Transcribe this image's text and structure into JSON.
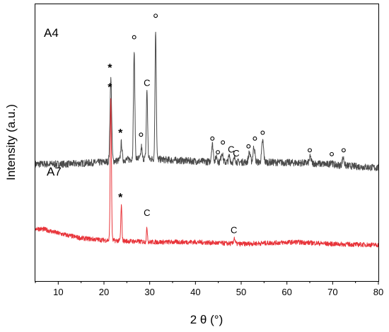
{
  "chart_data": {
    "type": "line",
    "xlabel": "2 θ (°)",
    "ylabel": "Intensity (a.u.)",
    "xlim": [
      5,
      80
    ],
    "x_ticks": [
      "10",
      "20",
      "30",
      "40",
      "50",
      "60",
      "70",
      "80"
    ],
    "y_ticks": [],
    "grid": false,
    "legend": "none",
    "series": [
      {
        "name": "A4",
        "color": "#4a4a4a",
        "baseline": 0.58,
        "noise": 0.018,
        "hump": [
          [
            5,
            0.6
          ],
          [
            12,
            0.6
          ],
          [
            20,
            0.61
          ],
          [
            28,
            0.63
          ],
          [
            35,
            0.62
          ],
          [
            45,
            0.61
          ],
          [
            55,
            0.61
          ],
          [
            65,
            0.605
          ],
          [
            80,
            0.58
          ]
        ],
        "peaks": [
          [
            21.5,
            0.42,
            0.18
          ],
          [
            23.8,
            0.09,
            0.15
          ],
          [
            26.6,
            0.55,
            0.15
          ],
          [
            28.2,
            0.06,
            0.12
          ],
          [
            29.4,
            0.35,
            0.14
          ],
          [
            31.3,
            0.66,
            0.14
          ],
          [
            43.7,
            0.09,
            0.2
          ],
          [
            44.6,
            0.03,
            0.18
          ],
          [
            45.8,
            0.05,
            0.2
          ],
          [
            47.4,
            0.03,
            0.18
          ],
          [
            48.6,
            0.02,
            0.18
          ],
          [
            51.8,
            0.05,
            0.2
          ],
          [
            52.8,
            0.08,
            0.2
          ],
          [
            54.7,
            0.11,
            0.2
          ],
          [
            65.1,
            0.03,
            0.2
          ],
          [
            69.7,
            0.02,
            0.2
          ],
          [
            72.3,
            0.04,
            0.2
          ]
        ]
      },
      {
        "name": "A7",
        "color": "#e8343a",
        "baseline": 0.18,
        "noise": 0.012,
        "hump": [
          [
            5,
            0.27
          ],
          [
            7,
            0.265
          ],
          [
            10,
            0.245
          ],
          [
            15,
            0.22
          ],
          [
            20,
            0.21
          ],
          [
            30,
            0.2
          ],
          [
            40,
            0.2
          ],
          [
            50,
            0.19
          ],
          [
            62,
            0.2
          ],
          [
            70,
            0.19
          ],
          [
            80,
            0.185
          ]
        ],
        "peaks": [
          [
            21.5,
            0.73,
            0.13
          ],
          [
            23.8,
            0.18,
            0.12
          ],
          [
            29.4,
            0.07,
            0.12
          ],
          [
            48.5,
            0.03,
            0.15
          ]
        ]
      }
    ],
    "annotations": [
      {
        "text": "*",
        "x": 21.3,
        "y": 1.09
      },
      {
        "text": "*",
        "x": 23.6,
        "y": 0.755
      },
      {
        "text": "o",
        "x": 26.6,
        "y": 1.24
      },
      {
        "text": "o",
        "x": 28.1,
        "y": 0.74
      },
      {
        "text": "C",
        "x": 29.4,
        "y": 1.0
      },
      {
        "text": "o",
        "x": 31.3,
        "y": 1.35
      },
      {
        "text": "o",
        "x": 43.7,
        "y": 0.72
      },
      {
        "text": "o",
        "x": 44.9,
        "y": 0.65
      },
      {
        "text": "o",
        "x": 46.0,
        "y": 0.7
      },
      {
        "text": "C",
        "x": 47.8,
        "y": 0.66
      },
      {
        "text": "C",
        "x": 48.9,
        "y": 0.64
      },
      {
        "text": "o",
        "x": 51.6,
        "y": 0.68
      },
      {
        "text": "o",
        "x": 53.0,
        "y": 0.72
      },
      {
        "text": "o",
        "x": 54.7,
        "y": 0.75
      },
      {
        "text": "o",
        "x": 65.0,
        "y": 0.66
      },
      {
        "text": "o",
        "x": 69.8,
        "y": 0.64
      },
      {
        "text": "o",
        "x": 72.4,
        "y": 0.66
      },
      {
        "text": "*",
        "x": 21.3,
        "y": 0.99
      },
      {
        "text": "*",
        "x": 23.6,
        "y": 0.425
      },
      {
        "text": "C",
        "x": 29.4,
        "y": 0.335
      },
      {
        "text": "C",
        "x": 48.4,
        "y": 0.245
      }
    ]
  }
}
